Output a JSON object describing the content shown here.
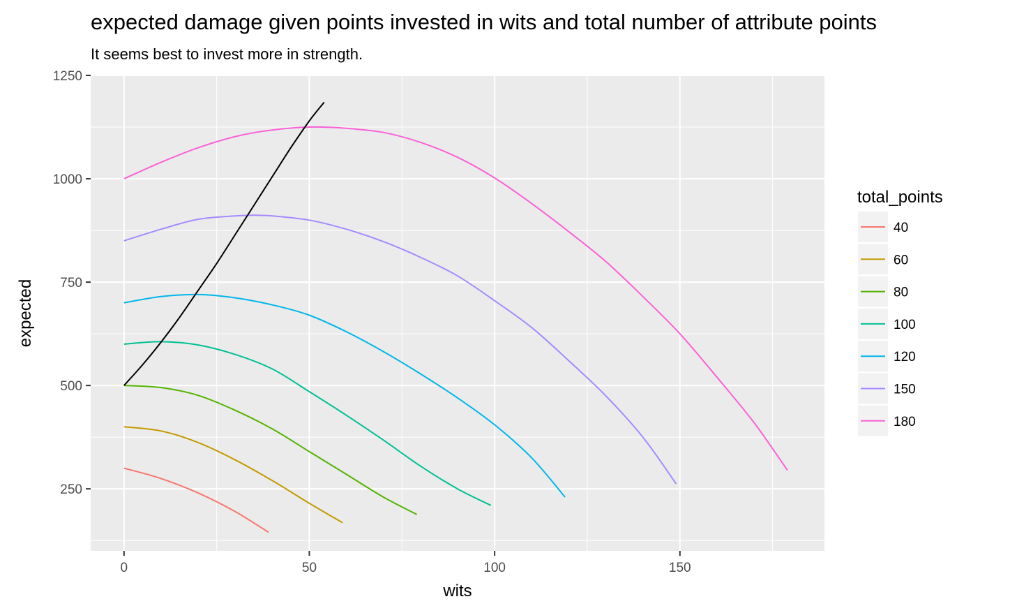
{
  "chart_data": {
    "type": "line",
    "title": "expected damage given points invested in wits and total number of attribute points",
    "subtitle": "It seems best to invest more in strength.",
    "xlabel": "wits",
    "ylabel": "expected",
    "xlim": [
      -9,
      189
    ],
    "ylim": [
      100,
      1250
    ],
    "xticks": [
      0,
      50,
      100,
      150
    ],
    "yticks": [
      250,
      500,
      750,
      1000,
      1250
    ],
    "grid": true,
    "legend": {
      "title": "total_points",
      "position": "right",
      "entries": [
        "40",
        "60",
        "80",
        "100",
        "120",
        "150",
        "180"
      ]
    },
    "series": [
      {
        "name": "40",
        "color": "#F8766D",
        "x": [
          0,
          10,
          20,
          30,
          39
        ],
        "y": [
          300,
          275,
          240,
          195,
          145
        ]
      },
      {
        "name": "60",
        "color": "#C49A00",
        "x": [
          0,
          10,
          20,
          30,
          40,
          50,
          59
        ],
        "y": [
          400,
          390,
          362,
          320,
          270,
          215,
          168
        ]
      },
      {
        "name": "80",
        "color": "#53B400",
        "x": [
          0,
          10,
          20,
          30,
          40,
          50,
          60,
          70,
          79
        ],
        "y": [
          500,
          495,
          476,
          440,
          395,
          340,
          285,
          230,
          188
        ]
      },
      {
        "name": "100",
        "color": "#00C094",
        "x": [
          0,
          10,
          20,
          30,
          40,
          50,
          60,
          70,
          80,
          90,
          99
        ],
        "y": [
          600,
          606,
          598,
          575,
          540,
          485,
          428,
          368,
          305,
          250,
          210
        ]
      },
      {
        "name": "120",
        "color": "#00B6EB",
        "x": [
          0,
          10,
          20,
          30,
          40,
          50,
          60,
          70,
          80,
          90,
          100,
          110,
          119
        ],
        "y": [
          700,
          715,
          720,
          712,
          695,
          670,
          630,
          582,
          528,
          470,
          405,
          325,
          230
        ]
      },
      {
        "name": "150",
        "color": "#A58AFF",
        "x": [
          0,
          10,
          20,
          30,
          35,
          40,
          50,
          60,
          70,
          80,
          90,
          100,
          110,
          120,
          130,
          140,
          149
        ],
        "y": [
          850,
          878,
          902,
          910,
          912,
          910,
          900,
          878,
          848,
          810,
          765,
          705,
          640,
          560,
          475,
          375,
          262
        ]
      },
      {
        "name": "180",
        "color": "#FB61D7",
        "x": [
          0,
          10,
          20,
          30,
          40,
          50,
          60,
          70,
          80,
          90,
          100,
          110,
          120,
          130,
          140,
          150,
          160,
          170,
          179
        ],
        "y": [
          1000,
          1040,
          1075,
          1102,
          1118,
          1125,
          1122,
          1112,
          1088,
          1052,
          1002,
          940,
          872,
          800,
          715,
          625,
          520,
          410,
          295
        ]
      },
      {
        "name": "",
        "color": "#000000",
        "x": [
          0,
          5,
          10,
          15,
          20,
          25,
          30,
          35,
          40,
          45,
          50,
          54
        ],
        "y": [
          500,
          550,
          605,
          665,
          730,
          795,
          865,
          935,
          1005,
          1075,
          1140,
          1185
        ]
      }
    ]
  }
}
